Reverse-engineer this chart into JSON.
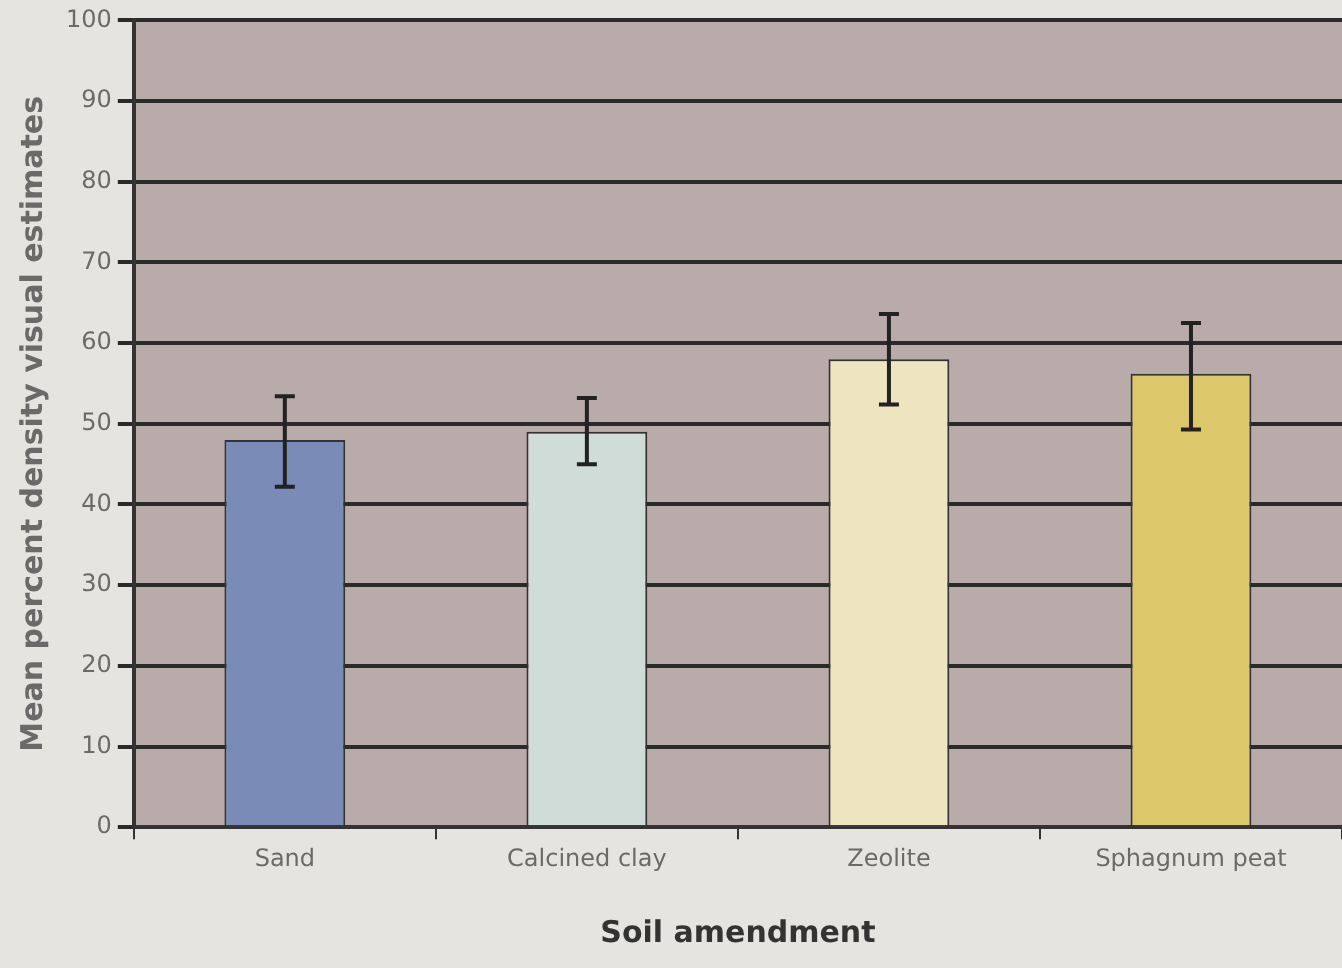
{
  "chart_data": {
    "type": "bar",
    "xlabel": "Soil amendment",
    "ylabel": "Mean percent density visual estimates",
    "categories": [
      "Sand",
      "Calcined clay",
      "Zeolite",
      "Sphagnum peat"
    ],
    "values": [
      48,
      49,
      58,
      56.2
    ],
    "colors": [
      "#7b8bb8",
      "#cfdcd8",
      "#ece5c0",
      "#dcc86a"
    ],
    "errors": [
      [
        42.2,
        53.4
      ],
      [
        45,
        53.2
      ],
      [
        52.4,
        63.6
      ],
      [
        49.3,
        62.5
      ]
    ],
    "ylim": [
      0,
      100
    ],
    "yticks": [
      0,
      10,
      20,
      30,
      40,
      50,
      60,
      70,
      80,
      90,
      100
    ],
    "grid": "y"
  }
}
